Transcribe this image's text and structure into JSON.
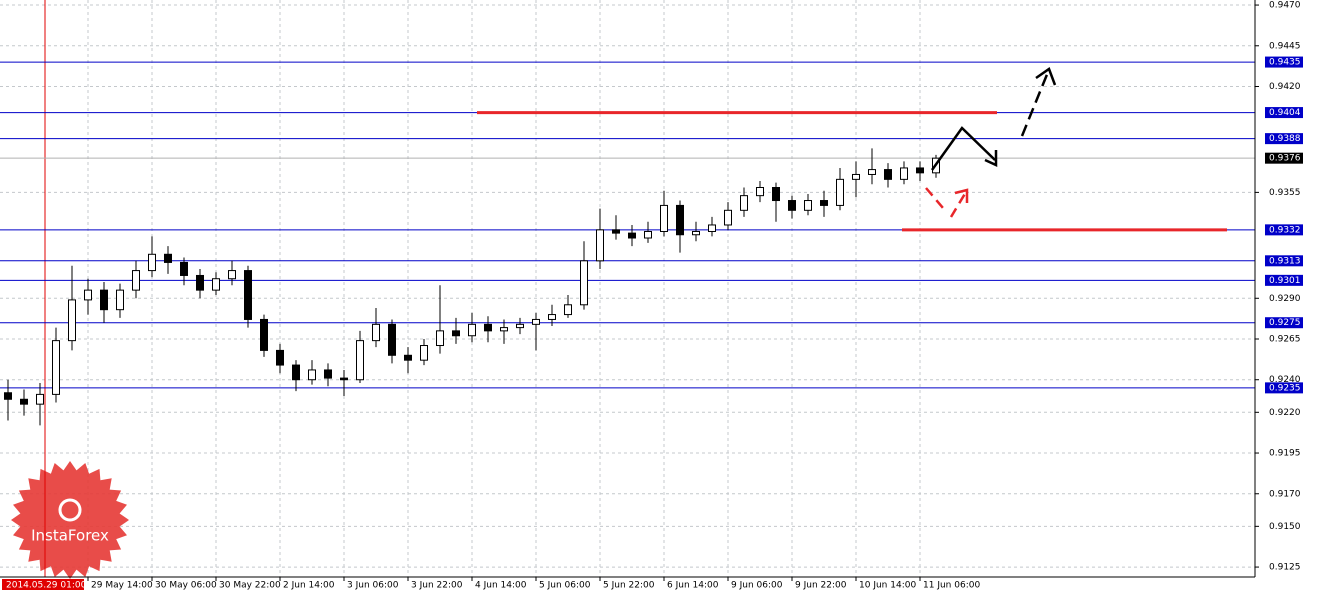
{
  "chart_data": {
    "type": "candlestick",
    "categories": [
      null,
      null,
      null,
      null,
      null,
      "29 May 14:00",
      null,
      null,
      null,
      "30 May 06:00",
      null,
      null,
      null,
      "30 May 22:00",
      null,
      null,
      null,
      "2 Jun 14:00",
      null,
      null,
      null,
      "3 Jun 06:00",
      null,
      null,
      null,
      "3 Jun 22:00",
      null,
      null,
      null,
      "4 Jun 14:00",
      null,
      null,
      null,
      "5 Jun 06:00",
      null,
      null,
      null,
      "5 Jun 22:00",
      null,
      null,
      null,
      "6 Jun 14:00",
      null,
      null,
      null,
      "9 Jun 06:00",
      null,
      null,
      null,
      "9 Jun 22:00",
      null,
      null,
      null,
      "10 Jun 14:00",
      null,
      null,
      null,
      "11 Jun 06:00",
      null
    ],
    "open": [
      0.9232,
      0.9228,
      0.9225,
      0.9231,
      0.9264,
      0.9289,
      0.9295,
      0.9283,
      0.9295,
      0.9307,
      0.9317,
      0.9312,
      0.9304,
      0.9295,
      0.9302,
      0.9307,
      0.9277,
      0.9258,
      0.9249,
      0.924,
      0.9246,
      0.9241,
      0.924,
      0.9264,
      0.9274,
      0.9255,
      0.9252,
      0.9261,
      0.927,
      0.9267,
      0.9274,
      0.927,
      0.9272,
      0.9274,
      0.9277,
      0.928,
      0.9286,
      0.9313,
      0.9332,
      0.933,
      0.9327,
      0.9331,
      0.9347,
      0.9329,
      0.9331,
      0.9335,
      0.9344,
      0.9353,
      0.9358,
      0.935,
      0.9344,
      0.935,
      0.9347,
      0.9363,
      0.9366,
      0.9369,
      0.9363,
      0.937,
      0.9367
    ],
    "high": [
      0.924,
      0.9234,
      0.9238,
      0.9272,
      0.931,
      0.9302,
      0.93,
      0.9299,
      0.9313,
      0.9328,
      0.9322,
      0.9315,
      0.9308,
      0.9306,
      0.9313,
      0.931,
      0.928,
      0.9262,
      0.9252,
      0.9252,
      0.925,
      0.9246,
      0.927,
      0.9284,
      0.9277,
      0.926,
      0.9265,
      0.9298,
      0.9278,
      0.9281,
      0.9279,
      0.9277,
      0.9278,
      0.9281,
      0.9286,
      0.9292,
      0.9325,
      0.9345,
      0.9341,
      0.9335,
      0.9337,
      0.9356,
      0.935,
      0.9337,
      0.934,
      0.9349,
      0.9358,
      0.9362,
      0.9361,
      0.9353,
      0.9354,
      0.9356,
      0.937,
      0.9374,
      0.9382,
      0.9373,
      0.9374,
      0.9374,
      0.9378
    ],
    "low": [
      0.9215,
      0.9218,
      0.9212,
      0.9226,
      0.9258,
      0.928,
      0.9275,
      0.9278,
      0.929,
      0.9303,
      0.9305,
      0.9298,
      0.929,
      0.9292,
      0.9298,
      0.9272,
      0.9254,
      0.9244,
      0.9233,
      0.9237,
      0.9236,
      0.923,
      0.9238,
      0.926,
      0.925,
      0.9244,
      0.9249,
      0.9256,
      0.9262,
      0.9263,
      0.9263,
      0.9262,
      0.9268,
      0.9258,
      0.9273,
      0.9278,
      0.9283,
      0.9308,
      0.9326,
      0.9322,
      0.9324,
      0.9328,
      0.9318,
      0.9325,
      0.9328,
      0.9332,
      0.934,
      0.9349,
      0.9337,
      0.9339,
      0.9341,
      0.934,
      0.9344,
      0.9352,
      0.936,
      0.9358,
      0.936,
      0.9362,
      0.9364
    ],
    "close": [
      0.9228,
      0.9225,
      0.9231,
      0.9264,
      0.9289,
      0.9295,
      0.9283,
      0.9295,
      0.9307,
      0.9317,
      0.9312,
      0.9304,
      0.9295,
      0.9302,
      0.9307,
      0.9277,
      0.9258,
      0.9249,
      0.924,
      0.9246,
      0.9241,
      0.924,
      0.9264,
      0.9274,
      0.9255,
      0.9252,
      0.9261,
      0.927,
      0.9267,
      0.9274,
      0.927,
      0.9272,
      0.9274,
      0.9277,
      0.928,
      0.9286,
      0.9313,
      0.9332,
      0.933,
      0.9327,
      0.9331,
      0.9347,
      0.9329,
      0.9331,
      0.9335,
      0.9344,
      0.9353,
      0.9358,
      0.935,
      0.9344,
      0.935,
      0.9347,
      0.9363,
      0.9366,
      0.9369,
      0.9363,
      0.937,
      0.9367,
      0.9376
    ],
    "ylim": [
      0.91189,
      0.94731
    ],
    "yticks": [
      {
        "value": 0.947,
        "label": "0.9470"
      },
      {
        "value": 0.9445,
        "label": "0.9445"
      },
      {
        "value": 0.942,
        "label": "0.9420"
      },
      {
        "value": 0.9355,
        "label": "0.9355"
      },
      {
        "value": 0.929,
        "label": "0.9290"
      },
      {
        "value": 0.9265,
        "label": "0.9265"
      },
      {
        "value": 0.924,
        "label": "0.9240"
      },
      {
        "value": 0.922,
        "label": "0.9220"
      },
      {
        "value": 0.9195,
        "label": "0.9195"
      },
      {
        "value": 0.917,
        "label": "0.9170"
      },
      {
        "value": 0.915,
        "label": "0.9150"
      },
      {
        "value": 0.9125,
        "label": "0.9125"
      }
    ],
    "levels": [
      0.9435,
      0.9404,
      0.9388,
      0.9332,
      0.9313,
      0.9301,
      0.9275,
      0.9235
    ],
    "level_color": "#0000c8",
    "current_price": 0.9376,
    "target_color": "#e8262a",
    "grid": true,
    "crosshair_label": "2014.05.29 01:00",
    "logo": "InstaForex"
  }
}
